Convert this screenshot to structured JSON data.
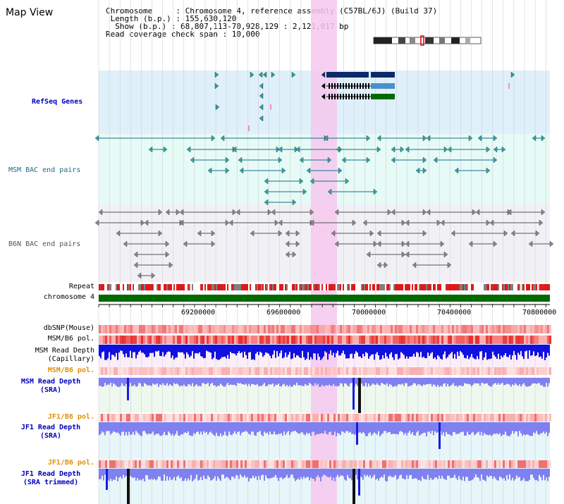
{
  "title": "Map View",
  "info": {
    "chromosome_line": "Chromosome     : Chromosome 4, reference assembly (C57BL/6J) (Build 37)",
    "length_line": " Length (b.p.) : 155,630,120",
    "show_line": "  Show (b.p.) : 68,807,113-70,928,129 : 2,121,017 bp",
    "coverage_line": "Read coverage check span : 10,000"
  },
  "tracks": {
    "refseq": "RefSeq Genes",
    "msm_bac": "MSM BAC end pairs",
    "b6n_bac": "B6N BAC end pairs",
    "repeat": "Repeat",
    "chromosome": "chromosome 4",
    "dbsnp": "dbSNP(Mouse)",
    "msm_b6_pol": "MSM/B6 pol.",
    "msm_read_depth_cap": "MSM Read Depth\n(Capillary)",
    "msm_b6_pol_2": "MSM/B6 pol.",
    "msm_read_depth_sra": "MSM Read Depth\n(SRA)",
    "jf1_b6_pol": "JF1/B6 pol.",
    "jf1_read_depth_sra": "JF1 Read Depth\n(SRA)",
    "jf1_b6_pol_2": "JF1/B6 pol.",
    "jf1_read_depth_trim": "JF1 Read Depth\n(SRA trimmed)"
  },
  "axis_ticks": [
    "69200000",
    "69600000",
    "70000000",
    "70400000",
    "70800000"
  ],
  "colors": {
    "refseq_bg": "#dff0fa",
    "highlight": "#f6c8ee",
    "chromosome_bar": "#006a00",
    "snp_dark": "#e83030",
    "depth_cap": "#1010e0",
    "depth_sra": "#8080f0",
    "teal": "#1a6c86",
    "gene_navy": "#0c2a6a",
    "gene_blue": "#4a90c8",
    "gene_green": "#006a00"
  }
}
